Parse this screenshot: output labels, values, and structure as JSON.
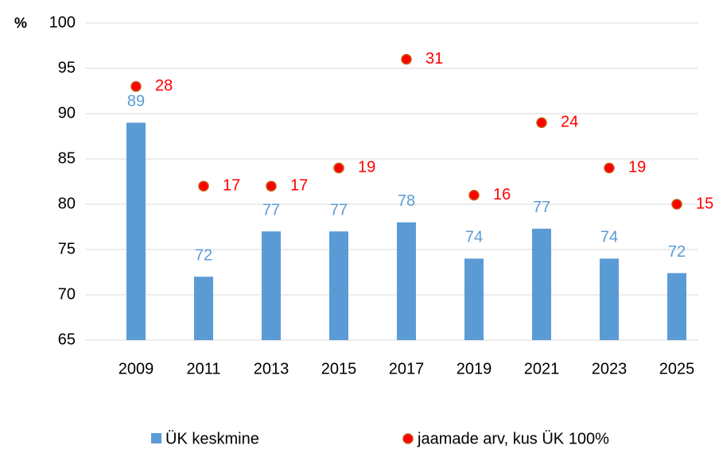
{
  "chart_data": {
    "type": "bar",
    "ylabel": "%",
    "categories": [
      "2009",
      "2011",
      "2013",
      "2015",
      "2017",
      "2019",
      "2021",
      "2023",
      "2025"
    ],
    "series": [
      {
        "name": "ÜK keskmine",
        "color": "#5b9bd5",
        "type": "bar",
        "values": [
          89,
          72,
          77,
          77,
          78,
          74,
          77.3,
          74,
          72.4
        ],
        "value_labels": [
          "89",
          "72",
          "77",
          "77",
          "78",
          "74",
          "77",
          "74",
          "72"
        ]
      },
      {
        "name": "jaamade arv, kus ÜK 100%",
        "color": "#ff0000",
        "type": "scatter",
        "axis": "y2",
        "values": [
          28,
          17,
          17,
          19,
          31,
          16,
          24,
          19,
          15
        ]
      }
    ],
    "ylim": [
      65,
      100
    ],
    "yticks": [
      65,
      70,
      75,
      80,
      85,
      90,
      95,
      100
    ],
    "y2lim": [
      0,
      35
    ],
    "grid": true,
    "legend": "bottom"
  }
}
